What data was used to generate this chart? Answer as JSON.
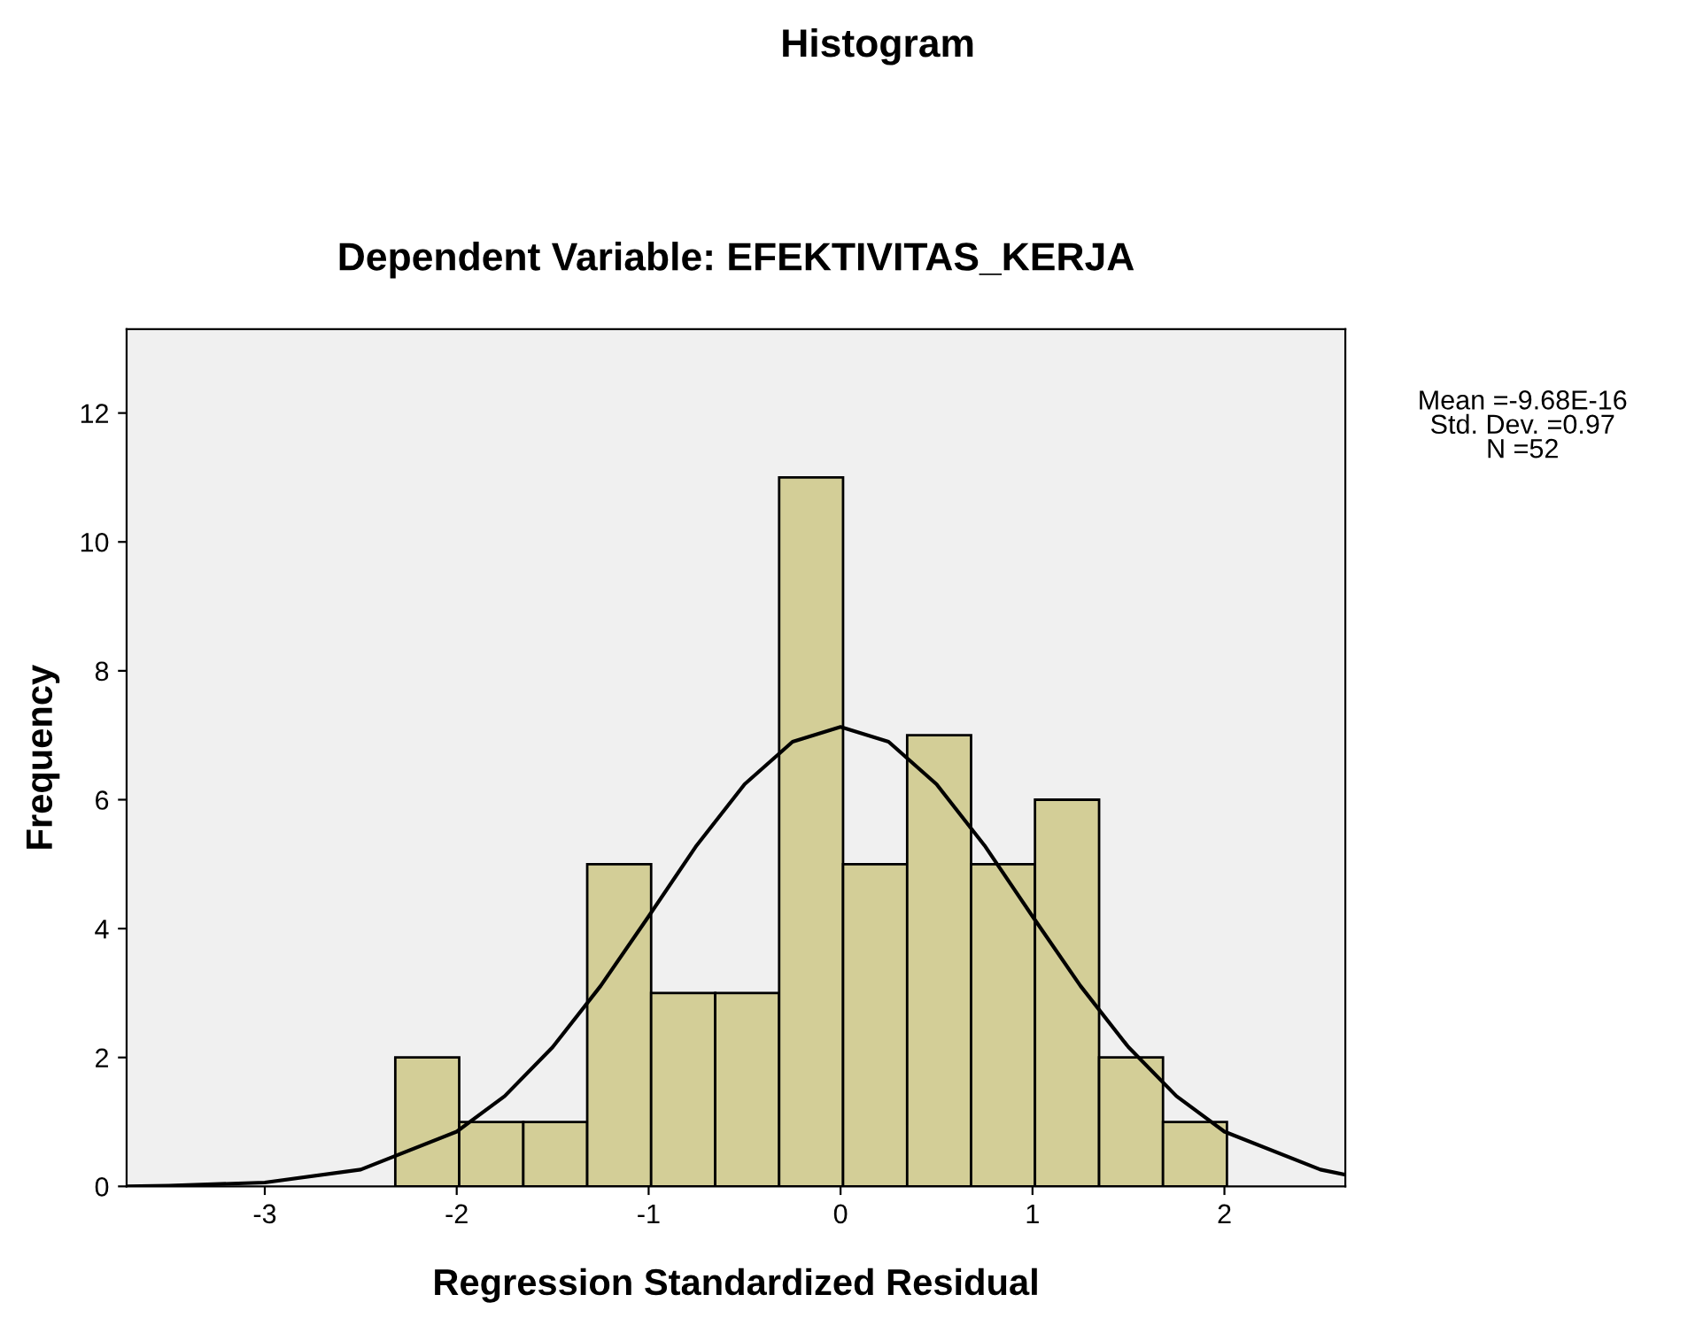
{
  "chart_data": {
    "type": "histogram",
    "title": "Histogram",
    "subtitle": "Dependent Variable: EFEKTIVITAS_KERJA",
    "xlabel": "Regression Standardized Residual",
    "ylabel": "Frequency",
    "bins": [
      -2.32,
      -1.987,
      -1.653,
      -1.32,
      -0.987,
      -0.653,
      -0.32,
      0.013,
      0.347,
      0.68,
      1.013,
      1.347,
      1.68,
      2.013
    ],
    "values": [
      2,
      1,
      1,
      5,
      3,
      3,
      11,
      5,
      7,
      5,
      6,
      2,
      1
    ],
    "color": "#d3ce97",
    "series": [
      {
        "type": "line",
        "color": "#000000",
        "x": [
          -3.72,
          -3.5,
          -3.0,
          -2.5,
          -2.0,
          -1.75,
          -1.5,
          -1.25,
          -1.0,
          -0.75,
          -0.5,
          -0.25,
          0.0,
          0.25,
          0.5,
          0.75,
          1.0,
          1.25,
          1.5,
          1.75,
          2.0,
          2.5,
          2.63
        ],
        "values": [
          0.0,
          0.01,
          0.06,
          0.26,
          0.85,
          1.4,
          2.16,
          3.11,
          4.19,
          5.29,
          6.24,
          6.9,
          7.13,
          6.9,
          6.24,
          5.29,
          4.19,
          3.11,
          2.16,
          1.4,
          0.85,
          0.26,
          0.18
        ]
      }
    ],
    "xlim": [
      -3.72,
      2.63
    ],
    "xticks": [
      -3,
      -2,
      -1,
      0,
      1,
      2
    ],
    "ylim": [
      0,
      13.3
    ],
    "yticks": [
      0,
      2,
      4,
      6,
      8,
      10,
      12
    ],
    "annotations": [
      "Mean =-9.68E-16\nStd. Dev. =0.97\nN =52"
    ],
    "grid": false,
    "legend": false
  }
}
